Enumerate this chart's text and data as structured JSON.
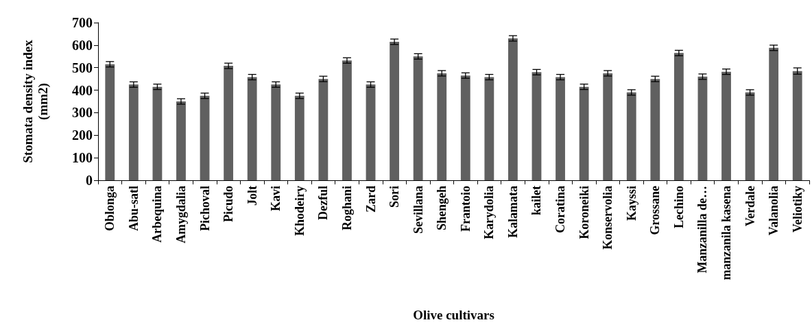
{
  "chart_data": {
    "type": "bar",
    "xlabel": "Olive cultivars",
    "ylabel": "Stomata density index\n(mm2)",
    "categories": [
      "Oblonga",
      "Abu-satl",
      "Arbequina",
      "Amygdalia",
      "Pichoval",
      "Picudo",
      "Jolt",
      "Kavi",
      "Khodeiry",
      "Dezful",
      "Roghani",
      "Zard",
      "Sori",
      "Sevillana",
      "Shengeh",
      "Frantoio",
      "Karydolia",
      "Kalamata",
      "kailet",
      "Coratina",
      "Koroneiki",
      "Konservolia",
      "Kayssi",
      "Grossane",
      "Lechino",
      "Manzanilla de…",
      "manzanila kasena",
      "Verdale",
      "Valanolia",
      "Veliotiky"
    ],
    "values": [
      515,
      425,
      415,
      350,
      375,
      508,
      458,
      425,
      375,
      450,
      532,
      425,
      615,
      550,
      475,
      465,
      458,
      630,
      480,
      458,
      415,
      475,
      390,
      450,
      565,
      460,
      482,
      390,
      588,
      485
    ],
    "errors": [
      12,
      12,
      12,
      12,
      12,
      12,
      12,
      12,
      12,
      12,
      12,
      12,
      12,
      12,
      12,
      12,
      12,
      12,
      12,
      12,
      12,
      12,
      12,
      12,
      12,
      12,
      12,
      12,
      12,
      14
    ],
    "color": "#606060",
    "ylim": [
      0,
      700
    ],
    "yticks": [
      0,
      100,
      200,
      300,
      400,
      500,
      600,
      700
    ],
    "grid": false
  }
}
